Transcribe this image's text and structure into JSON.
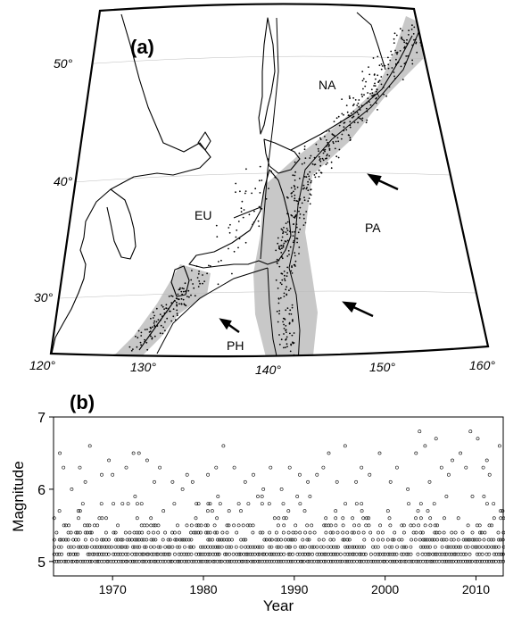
{
  "panel_a": {
    "label": "(a)",
    "lat_labels": [
      "50°",
      "40°",
      "30°"
    ],
    "lon_labels": [
      "120°",
      "130°",
      "140°",
      "150°",
      "160°"
    ],
    "regions": {
      "na": "NA",
      "eu": "EU",
      "pa": "PA",
      "ph": "PH"
    },
    "colors": {
      "seismic_zone": "#c8c8c8",
      "coast": "#000000",
      "events": "#000000"
    }
  },
  "panel_b": {
    "label": "(b)"
  },
  "chart_data": {
    "type": "scatter",
    "xlabel": "Year",
    "ylabel": "Magnitude",
    "xlim": [
      1963.5,
      2013
    ],
    "ylim": [
      4.8,
      7.0
    ],
    "x_ticks": [
      1970,
      1980,
      1990,
      2000,
      2010
    ],
    "y_ticks": [
      5,
      6,
      7
    ],
    "x_tick_labels": [
      "1970",
      "1980",
      "1990",
      "2000",
      "2010"
    ],
    "y_tick_labels": [
      "5",
      "6",
      "7"
    ],
    "marker": "open-circle",
    "series": [
      {
        "points": [
          [
            1964.2,
            6.5
          ],
          [
            1964.6,
            6.3
          ],
          [
            1965.5,
            6.0
          ],
          [
            1966.4,
            6.3
          ],
          [
            1967.0,
            6.1
          ],
          [
            1967.5,
            6.6
          ],
          [
            1968.8,
            6.2
          ],
          [
            1969.6,
            6.4
          ],
          [
            1970.0,
            6.2
          ],
          [
            1971.5,
            6.3
          ],
          [
            1972.3,
            6.5
          ],
          [
            1972.9,
            6.5
          ],
          [
            1973.8,
            6.4
          ],
          [
            1974.6,
            6.1
          ],
          [
            1975.2,
            6.3
          ],
          [
            1976.6,
            6.1
          ],
          [
            1977.7,
            6.0
          ],
          [
            1978.2,
            6.2
          ],
          [
            1978.8,
            6.1
          ],
          [
            1980.5,
            6.2
          ],
          [
            1981.4,
            6.3
          ],
          [
            1982.2,
            6.6
          ],
          [
            1983.4,
            6.3
          ],
          [
            1984.6,
            6.1
          ],
          [
            1985.5,
            6.2
          ],
          [
            1986.6,
            6.0
          ],
          [
            1987.4,
            6.3
          ],
          [
            1988.6,
            6.0
          ],
          [
            1989.5,
            6.3
          ],
          [
            1990.6,
            6.2
          ],
          [
            1991.5,
            6.1
          ],
          [
            1992.5,
            6.2
          ],
          [
            1993.2,
            6.3
          ],
          [
            1993.8,
            6.5
          ],
          [
            1994.7,
            6.1
          ],
          [
            1995.6,
            6.6
          ],
          [
            1996.8,
            6.1
          ],
          [
            1997.4,
            6.3
          ],
          [
            1998.3,
            6.2
          ],
          [
            1999.4,
            6.5
          ],
          [
            2000.6,
            6.1
          ],
          [
            2001.3,
            6.3
          ],
          [
            2002.5,
            6.0
          ],
          [
            2003.4,
            6.5
          ],
          [
            2003.8,
            6.8
          ],
          [
            2004.4,
            6.6
          ],
          [
            2004.9,
            6.1
          ],
          [
            2005.6,
            6.7
          ],
          [
            2006.2,
            6.3
          ],
          [
            2007.0,
            6.2
          ],
          [
            2007.4,
            6.4
          ],
          [
            2008.3,
            6.5
          ],
          [
            2008.9,
            6.3
          ],
          [
            2009.4,
            6.8
          ],
          [
            2010.2,
            6.7
          ],
          [
            2010.8,
            6.3
          ],
          [
            2011.2,
            6.4
          ],
          [
            2011.5,
            6.2
          ],
          [
            2012.6,
            6.6
          ]
        ]
      }
    ]
  }
}
